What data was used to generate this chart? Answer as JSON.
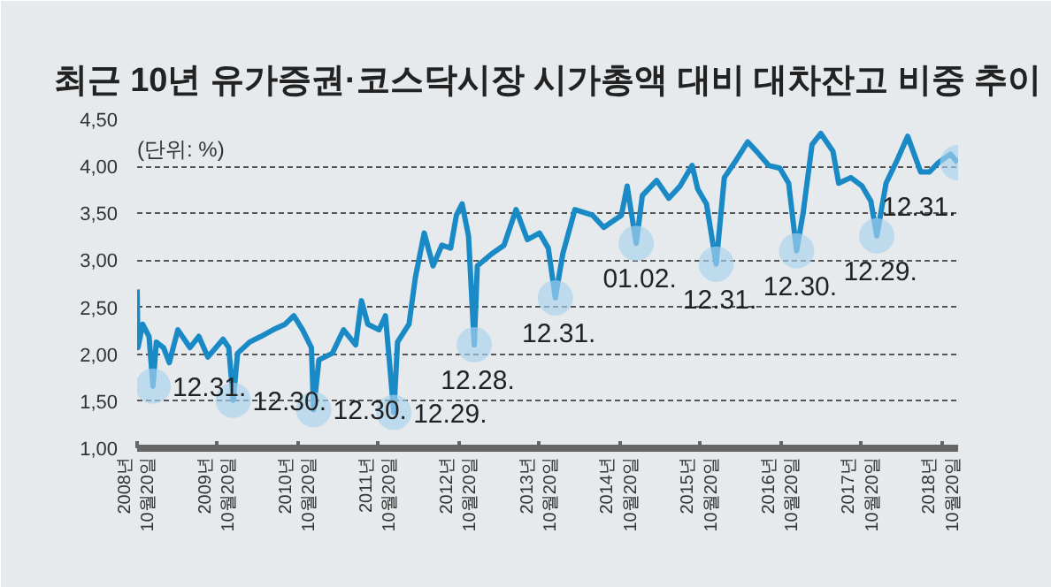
{
  "chart_data": {
    "type": "line",
    "title": "최근 10년 유가증권·코스닥시장 시가총액 대비 대차잔고 비중 추이",
    "x": [
      "2008-10-20",
      "2008-10-24",
      "2008-11-14",
      "2008-12-13",
      "2008-12-31",
      "2009-01-15",
      "2009-02-17",
      "2009-03-15",
      "2009-04-23",
      "2009-06-17",
      "2009-07-27",
      "2009-09-06",
      "2009-11-14",
      "2009-12-10",
      "2009-12-30",
      "2010-01-19",
      "2010-03-15",
      "2010-05-05",
      "2010-06-29",
      "2010-08-23",
      "2010-10-01",
      "2010-11-10",
      "2010-12-20",
      "2010-12-30",
      "2011-01-23",
      "2011-03-25",
      "2011-05-15",
      "2011-07-09",
      "2011-08-04",
      "2011-09-02",
      "2011-10-23",
      "2011-11-21",
      "2011-12-29",
      "2012-01-15",
      "2012-03-07",
      "2012-04-05",
      "2012-05-15",
      "2012-06-24",
      "2012-08-03",
      "2012-09-12",
      "2012-10-08",
      "2012-11-03",
      "2012-12-02",
      "2012-12-28",
      "2013-01-11",
      "2013-03-18",
      "2013-05-12",
      "2013-07-06",
      "2013-08-26",
      "2013-10-20",
      "2013-11-29",
      "2013-12-31",
      "2014-02-03",
      "2014-03-30",
      "2014-06-18",
      "2014-08-08",
      "2014-10-27",
      "2014-11-22",
      "2015-01-02",
      "2015-01-30",
      "2015-04-05",
      "2015-05-30",
      "2015-07-20",
      "2015-09-13",
      "2015-10-08",
      "2015-11-17",
      "2015-12-31",
      "2016-02-06",
      "2016-04-01",
      "2016-05-22",
      "2016-07-01",
      "2016-08-25",
      "2016-10-15",
      "2016-11-24",
      "2016-12-30",
      "2017-01-29",
      "2017-03-10",
      "2017-04-19",
      "2017-06-13",
      "2017-07-09",
      "2017-09-02",
      "2017-10-23",
      "2017-12-02",
      "2017-12-29",
      "2018-02-09",
      "2018-04-01",
      "2018-05-18",
      "2018-07-16",
      "2018-08-25",
      "2018-10-05",
      "2018-11-28",
      "2018-12-31"
    ],
    "series": [
      {
        "color": "#1a8ac6",
        "values": [
          2.69,
          2.07,
          2.32,
          2.19,
          1.66,
          2.13,
          2.07,
          1.91,
          2.26,
          2.07,
          2.19,
          1.97,
          2.16,
          2.07,
          1.51,
          2.01,
          2.13,
          2.19,
          2.26,
          2.32,
          2.41,
          2.26,
          2.07,
          1.41,
          1.94,
          2.01,
          2.26,
          2.1,
          2.57,
          2.32,
          2.26,
          2.41,
          1.38,
          2.13,
          2.32,
          2.82,
          3.29,
          2.94,
          3.16,
          3.13,
          3.48,
          3.6,
          3.26,
          2.1,
          2.94,
          3.07,
          3.16,
          3.54,
          3.22,
          3.29,
          3.13,
          2.6,
          3.07,
          3.54,
          3.48,
          3.35,
          3.48,
          3.79,
          3.18,
          3.69,
          3.85,
          3.66,
          3.79,
          4.01,
          3.76,
          3.6,
          2.96,
          3.88,
          4.07,
          4.26,
          4.16,
          4.01,
          3.98,
          3.82,
          3.1,
          3.51,
          4.23,
          4.35,
          4.16,
          3.82,
          3.88,
          3.79,
          3.63,
          3.26,
          3.82,
          4.07,
          4.32,
          3.94,
          3.94,
          4.04,
          4.13,
          4.04
        ]
      }
    ],
    "xlim": [
      "2008-10-20",
      "2019-01-02"
    ],
    "xticks": [
      {
        "value": "2008-10-20",
        "label": "2008년\n10월20일"
      },
      {
        "value": "2009-10-20",
        "label": "2009년\n10월20일"
      },
      {
        "value": "2010-10-20",
        "label": "2010년\n10월20일"
      },
      {
        "value": "2011-10-20",
        "label": "2011년\n10월20일"
      },
      {
        "value": "2012-10-20",
        "label": "2012년\n10월20일"
      },
      {
        "value": "2013-10-20",
        "label": "2013년\n10월20일"
      },
      {
        "value": "2014-10-20",
        "label": "2014년\n10월20일"
      },
      {
        "value": "2015-10-20",
        "label": "2015년\n10월20일"
      },
      {
        "value": "2016-10-20",
        "label": "2016년\n10월20일"
      },
      {
        "value": "2017-10-20",
        "label": "2017년\n10월20일"
      },
      {
        "value": "2018-10-20",
        "label": "2018년\n10월20일"
      }
    ],
    "ylim": [
      1.0,
      4.5
    ],
    "yticks": [
      {
        "value": 1.0,
        "label": "1,00"
      },
      {
        "value": 1.5,
        "label": "1,50"
      },
      {
        "value": 2.0,
        "label": "2,00"
      },
      {
        "value": 2.5,
        "label": "2,50"
      },
      {
        "value": 3.0,
        "label": "3,00"
      },
      {
        "value": 3.5,
        "label": "3,50"
      },
      {
        "value": 4.0,
        "label": "4,00"
      },
      {
        "value": 4.5,
        "label": "4,50"
      }
    ],
    "grid": "y",
    "line_style": "solid",
    "annotations": [
      "(단위: %)",
      {
        "text": "12.31.",
        "x": "2008-12-31",
        "y": 1.66
      },
      {
        "text": "12.30.",
        "x": "2009-12-30",
        "y": 1.51
      },
      {
        "text": "12.30.",
        "x": "2010-12-30",
        "y": 1.41
      },
      {
        "text": "12.29.",
        "x": "2011-12-29",
        "y": 1.38
      },
      {
        "text": "12.28.",
        "x": "2012-12-28",
        "y": 2.1
      },
      {
        "text": "12.31.",
        "x": "2013-12-31",
        "y": 2.6
      },
      {
        "text": "01.02.",
        "x": "2015-01-02",
        "y": 3.18
      },
      {
        "text": "12.31.",
        "x": "2015-12-31",
        "y": 2.96
      },
      {
        "text": "12.30.",
        "x": "2016-12-30",
        "y": 3.1
      },
      {
        "text": "12.29.",
        "x": "2017-12-29",
        "y": 3.26
      },
      {
        "text": "12.31.",
        "x": "2018-12-31",
        "y": 4.04
      }
    ]
  }
}
